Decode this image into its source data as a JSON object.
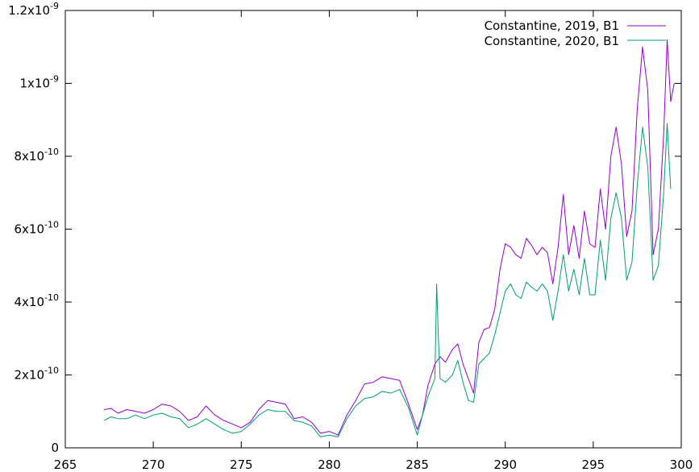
{
  "chart_data": {
    "type": "line",
    "title": "",
    "xlabel": "",
    "ylabel": "",
    "xlim": [
      265,
      300
    ],
    "ylim": [
      0,
      1.2e-09
    ],
    "x_ticks": [
      265,
      270,
      275,
      280,
      285,
      290,
      295,
      300
    ],
    "x_tick_labels": [
      "265",
      "270",
      "275",
      "280",
      "285",
      "290",
      "295",
      "300"
    ],
    "y_ticks": [
      0,
      2e-10,
      4e-10,
      6e-10,
      8e-10,
      1e-09,
      1.2e-09
    ],
    "y_tick_labels": [
      {
        "mant": "0",
        "exp": ""
      },
      {
        "mant": "2x10",
        "exp": "-10"
      },
      {
        "mant": "4x10",
        "exp": "-10"
      },
      {
        "mant": "6x10",
        "exp": "-10"
      },
      {
        "mant": "8x10",
        "exp": "-10"
      },
      {
        "mant": "1x10",
        "exp": "-9"
      },
      {
        "mant": "1.2x10",
        "exp": "-9"
      }
    ],
    "grid": false,
    "legend_position": "top-right",
    "series": [
      {
        "name": "Constantine, 2019, B1",
        "color": "#9400d3",
        "x": [
          267.2,
          267.6,
          268.0,
          268.5,
          269.0,
          269.5,
          270.0,
          270.5,
          271.0,
          271.5,
          272.0,
          272.5,
          273.0,
          273.5,
          274.0,
          274.5,
          275.0,
          275.5,
          276.0,
          276.5,
          277.0,
          277.5,
          278.0,
          278.5,
          279.0,
          279.5,
          280.0,
          280.5,
          281.0,
          281.5,
          282.0,
          282.5,
          283.0,
          283.5,
          284.0,
          284.5,
          285.0,
          285.3,
          285.6,
          286.0,
          286.3,
          286.6,
          287.0,
          287.3,
          287.6,
          287.9,
          288.2,
          288.5,
          288.8,
          289.1,
          289.4,
          289.7,
          290.0,
          290.3,
          290.6,
          290.9,
          291.2,
          291.5,
          291.8,
          292.1,
          292.4,
          292.7,
          293.0,
          293.3,
          293.6,
          293.9,
          294.2,
          294.5,
          294.8,
          295.1,
          295.4,
          295.7,
          296.0,
          296.3,
          296.6,
          296.9,
          297.2,
          297.5,
          297.8,
          298.1,
          298.4,
          298.7,
          299.0,
          299.2,
          299.4,
          299.6
        ],
        "y": [
          1.05e-10,
          1.08e-10,
          9.5e-11,
          1.05e-10,
          1e-10,
          9.5e-11,
          1.05e-10,
          1.2e-10,
          1.15e-10,
          1e-10,
          7.5e-11,
          8.5e-11,
          1.15e-10,
          9e-11,
          7.5e-11,
          6.5e-11,
          5.5e-11,
          7e-11,
          1.05e-10,
          1.3e-10,
          1.25e-10,
          1.2e-10,
          8e-11,
          8.5e-11,
          7e-11,
          4e-11,
          4.5e-11,
          3.5e-11,
          9e-11,
          1.3e-10,
          1.75e-10,
          1.8e-10,
          1.95e-10,
          1.9e-10,
          1.85e-10,
          1.2e-10,
          5e-11,
          9e-11,
          1.7e-10,
          2.3e-10,
          2.5e-10,
          2.35e-10,
          2.7e-10,
          2.85e-10,
          2.3e-10,
          1.9e-10,
          1.5e-10,
          2.9e-10,
          3.25e-10,
          3.3e-10,
          3.8e-10,
          4.9e-10,
          5.6e-10,
          5.5e-10,
          5.3e-10,
          5.2e-10,
          5.75e-10,
          5.55e-10,
          5.3e-10,
          5.5e-10,
          5.35e-10,
          4.5e-10,
          5.5e-10,
          6.95e-10,
          5.3e-10,
          6.1e-10,
          5.2e-10,
          6.5e-10,
          5.6e-10,
          5.5e-10,
          7.1e-10,
          6e-10,
          8e-10,
          8.8e-10,
          7.8e-10,
          5.8e-10,
          6.5e-10,
          9.3e-10,
          1.1e-09,
          9.8e-10,
          5.3e-10,
          6e-10,
          8.6e-10,
          1.12e-09,
          9.5e-10,
          1e-09
        ]
      },
      {
        "name": "Constantine, 2020, B1",
        "color": "#009e73",
        "x": [
          267.2,
          267.6,
          268.0,
          268.5,
          269.0,
          269.5,
          270.0,
          270.5,
          271.0,
          271.5,
          272.0,
          272.5,
          273.0,
          273.5,
          274.0,
          274.5,
          275.0,
          275.5,
          276.0,
          276.5,
          277.0,
          277.5,
          278.0,
          278.5,
          279.0,
          279.5,
          280.0,
          280.5,
          281.0,
          281.5,
          282.0,
          282.5,
          283.0,
          283.5,
          284.0,
          284.5,
          285.0,
          285.3,
          285.6,
          286.0,
          286.1,
          286.2,
          286.3,
          286.6,
          287.0,
          287.3,
          287.6,
          287.9,
          288.2,
          288.5,
          288.8,
          289.1,
          289.4,
          289.7,
          290.0,
          290.3,
          290.6,
          290.9,
          291.2,
          291.5,
          291.8,
          292.1,
          292.4,
          292.7,
          293.0,
          293.3,
          293.6,
          293.9,
          294.2,
          294.5,
          294.8,
          295.1,
          295.4,
          295.7,
          296.0,
          296.3,
          296.6,
          296.9,
          297.2,
          297.5,
          297.8,
          298.1,
          298.4,
          298.7,
          299.0,
          299.2,
          299.4
        ],
        "y": [
          7.5e-11,
          8.5e-11,
          8e-11,
          8e-11,
          9e-11,
          8e-11,
          9e-11,
          9.5e-11,
          8.5e-11,
          8e-11,
          5.5e-11,
          6.5e-11,
          8e-11,
          6.5e-11,
          5e-11,
          4e-11,
          4.5e-11,
          6.5e-11,
          9e-11,
          1.05e-10,
          1e-10,
          1e-10,
          7.5e-11,
          7e-11,
          6e-11,
          3e-11,
          3.5e-11,
          3e-11,
          8e-11,
          1.15e-10,
          1.35e-10,
          1.4e-10,
          1.55e-10,
          1.5e-10,
          1.6e-10,
          1.1e-10,
          3.5e-11,
          9e-11,
          1.4e-10,
          1.9e-10,
          4.5e-10,
          3e-10,
          1.9e-10,
          1.8e-10,
          2e-10,
          2.4e-10,
          1.8e-10,
          1.3e-10,
          1.25e-10,
          2.3e-10,
          2.45e-10,
          2.6e-10,
          3.1e-10,
          3.7e-10,
          4.3e-10,
          4.5e-10,
          4.2e-10,
          4.1e-10,
          4.55e-10,
          4.4e-10,
          4.3e-10,
          4.5e-10,
          4.3e-10,
          3.5e-10,
          4.3e-10,
          5.3e-10,
          4.3e-10,
          4.9e-10,
          4.2e-10,
          5.2e-10,
          4.2e-10,
          4.2e-10,
          5.7e-10,
          4.6e-10,
          6.3e-10,
          7e-10,
          6.3e-10,
          4.6e-10,
          5.1e-10,
          7.2e-10,
          8.8e-10,
          7.7e-10,
          4.6e-10,
          5e-10,
          7e-10,
          8.9e-10,
          7.1e-10
        ]
      }
    ]
  }
}
